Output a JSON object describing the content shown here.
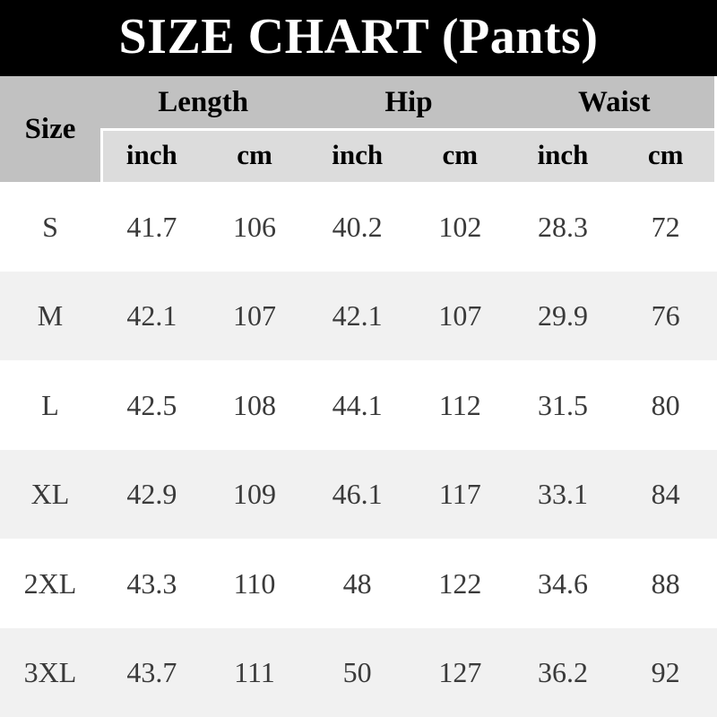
{
  "title": "SIZE CHART (Pants)",
  "table": {
    "corner": "Size",
    "groups": [
      "Length",
      "Hip",
      "Waist"
    ],
    "units": [
      "inch",
      "cm",
      "inch",
      "cm",
      "inch",
      "cm"
    ],
    "rows": [
      {
        "size": "S",
        "values": [
          "41.7",
          "106",
          "40.2",
          "102",
          "28.3",
          "72"
        ]
      },
      {
        "size": "M",
        "values": [
          "42.1",
          "107",
          "42.1",
          "107",
          "29.9",
          "76"
        ]
      },
      {
        "size": "L",
        "values": [
          "42.5",
          "108",
          "44.1",
          "112",
          "31.5",
          "80"
        ]
      },
      {
        "size": "XL",
        "values": [
          "42.9",
          "109",
          "46.1",
          "117",
          "33.1",
          "84"
        ]
      },
      {
        "size": "2XL",
        "values": [
          "43.3",
          "110",
          "48",
          "122",
          "34.6",
          "88"
        ]
      },
      {
        "size": "3XL",
        "values": [
          "43.7",
          "111",
          "50",
          "127",
          "36.2",
          "92"
        ]
      }
    ]
  },
  "colors": {
    "title_bg": "#000000",
    "title_text": "#ffffff",
    "header_bg": "#c1c1c1",
    "subheader_bg": "#dcdcdc",
    "row_bg": "#ffffff",
    "row_alt_bg": "#f1f1f1",
    "header_text": "#000000",
    "data_text": "#3a3a3a"
  },
  "chart_data": {
    "type": "table",
    "title": "SIZE CHART (Pants)",
    "column_groups": [
      "Length",
      "Hip",
      "Waist"
    ],
    "columns": [
      "Size",
      "Length inch",
      "Length cm",
      "Hip inch",
      "Hip cm",
      "Waist inch",
      "Waist cm"
    ],
    "rows": [
      [
        "S",
        41.7,
        106,
        40.2,
        102,
        28.3,
        72
      ],
      [
        "M",
        42.1,
        107,
        42.1,
        107,
        29.9,
        76
      ],
      [
        "L",
        42.5,
        108,
        44.1,
        112,
        31.5,
        80
      ],
      [
        "XL",
        42.9,
        109,
        46.1,
        117,
        33.1,
        84
      ],
      [
        "2XL",
        43.3,
        110,
        48,
        122,
        34.6,
        88
      ],
      [
        "3XL",
        43.7,
        111,
        50,
        127,
        36.2,
        92
      ]
    ]
  }
}
